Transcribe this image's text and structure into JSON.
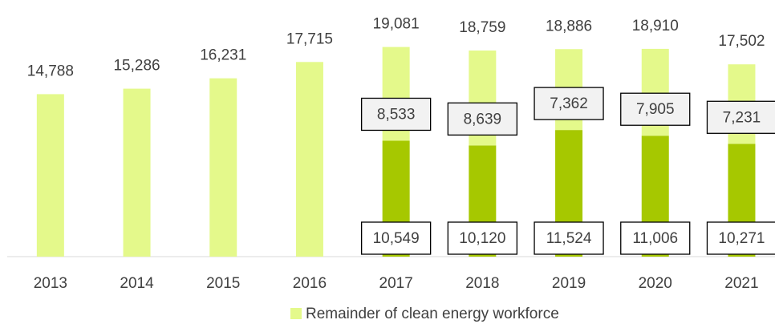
{
  "chart_data": {
    "type": "stacked_bar",
    "categories": [
      "2013",
      "2014",
      "2015",
      "2016",
      "2017",
      "2018",
      "2019",
      "2020",
      "2021"
    ],
    "series": [
      {
        "color": "#a6c800",
        "values": [
          null,
          null,
          null,
          null,
          10549,
          10120,
          11524,
          11006,
          10271
        ],
        "value_labels": [
          null,
          null,
          null,
          null,
          "10,549",
          "10,120",
          "11,524",
          "11,006",
          "10,271"
        ]
      },
      {
        "name": "Remainder of clean energy workforce",
        "color": "#e4f98b",
        "values": [
          14788,
          15286,
          16231,
          17715,
          8533,
          8639,
          7362,
          7905,
          7231
        ],
        "value_labels": [
          null,
          null,
          null,
          null,
          "8,533",
          "8,639",
          "7,362",
          "7,905",
          "7,231"
        ]
      }
    ],
    "totals": {
      "values": [
        14788,
        15286,
        16231,
        17715,
        19081,
        18759,
        18886,
        18910,
        17502
      ],
      "value_labels": [
        "14,788",
        "15,286",
        "16,231",
        "17,715",
        "19,081",
        "18,759",
        "18,886",
        "18,910",
        "17,502"
      ]
    },
    "ylim": [
      0,
      20000
    ]
  }
}
